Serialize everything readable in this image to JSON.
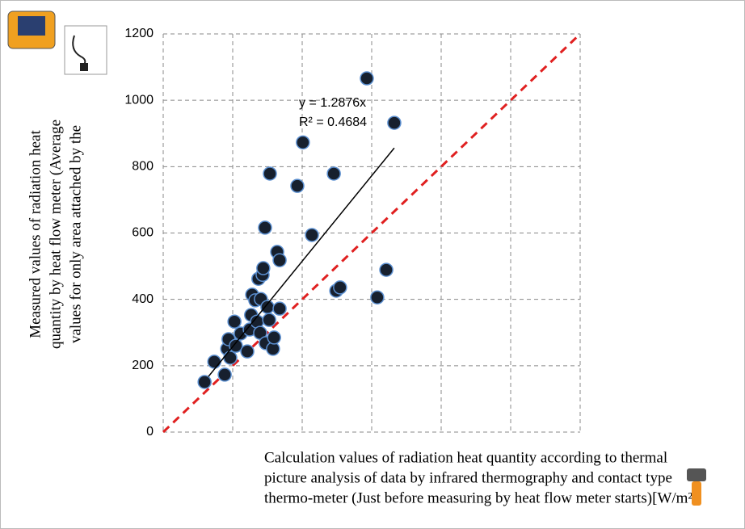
{
  "chart_data": {
    "type": "scatter",
    "y_label_lines": [
      "Measured values of radiation heat",
      "quantity by heat flow meter (Average",
      "values for only area attached by the"
    ],
    "x_label_lines": [
      "Calculation values of radiation heat quantity according to  thermal",
      "picture analysis of data by infrared thermography and contact type",
      "thermo-meter (Just before measuring by heat flow meter starts)[W/m²]"
    ],
    "equation": "y = 1.2876x",
    "r_squared": "R² = 0.4684",
    "trendline": {
      "slope": 1.2876,
      "x": [
        130,
        665
      ]
    },
    "color": "#17202e",
    "edge_color": "#5b8fd0",
    "reference_color": "#e02020",
    "xlim": [
      0,
      1200
    ],
    "xticks": [
      0,
      200,
      400,
      600,
      800,
      1000,
      1200
    ],
    "ylim": [
      0,
      1200
    ],
    "yticks": [
      0,
      200,
      400,
      600,
      800,
      1000,
      1200
    ],
    "grid": true,
    "x": [
      119,
      147,
      177,
      184,
      188,
      193,
      209,
      205,
      223,
      242,
      249,
      253,
      256,
      265,
      270,
      274,
      279,
      281,
      286,
      288,
      293,
      295,
      300,
      305,
      307,
      316,
      319,
      328,
      335,
      335,
      386,
      402,
      428,
      491,
      498,
      509,
      586,
      616,
      642,
      665
    ],
    "values": [
      151,
      212,
      173,
      251,
      280,
      224,
      260,
      333,
      297,
      243,
      309,
      353,
      414,
      397,
      333,
      462,
      299,
      401,
      474,
      494,
      616,
      268,
      377,
      338,
      779,
      251,
      285,
      543,
      518,
      372,
      742,
      873,
      594,
      779,
      426,
      436,
      1066,
      406,
      489,
      932
    ]
  }
}
